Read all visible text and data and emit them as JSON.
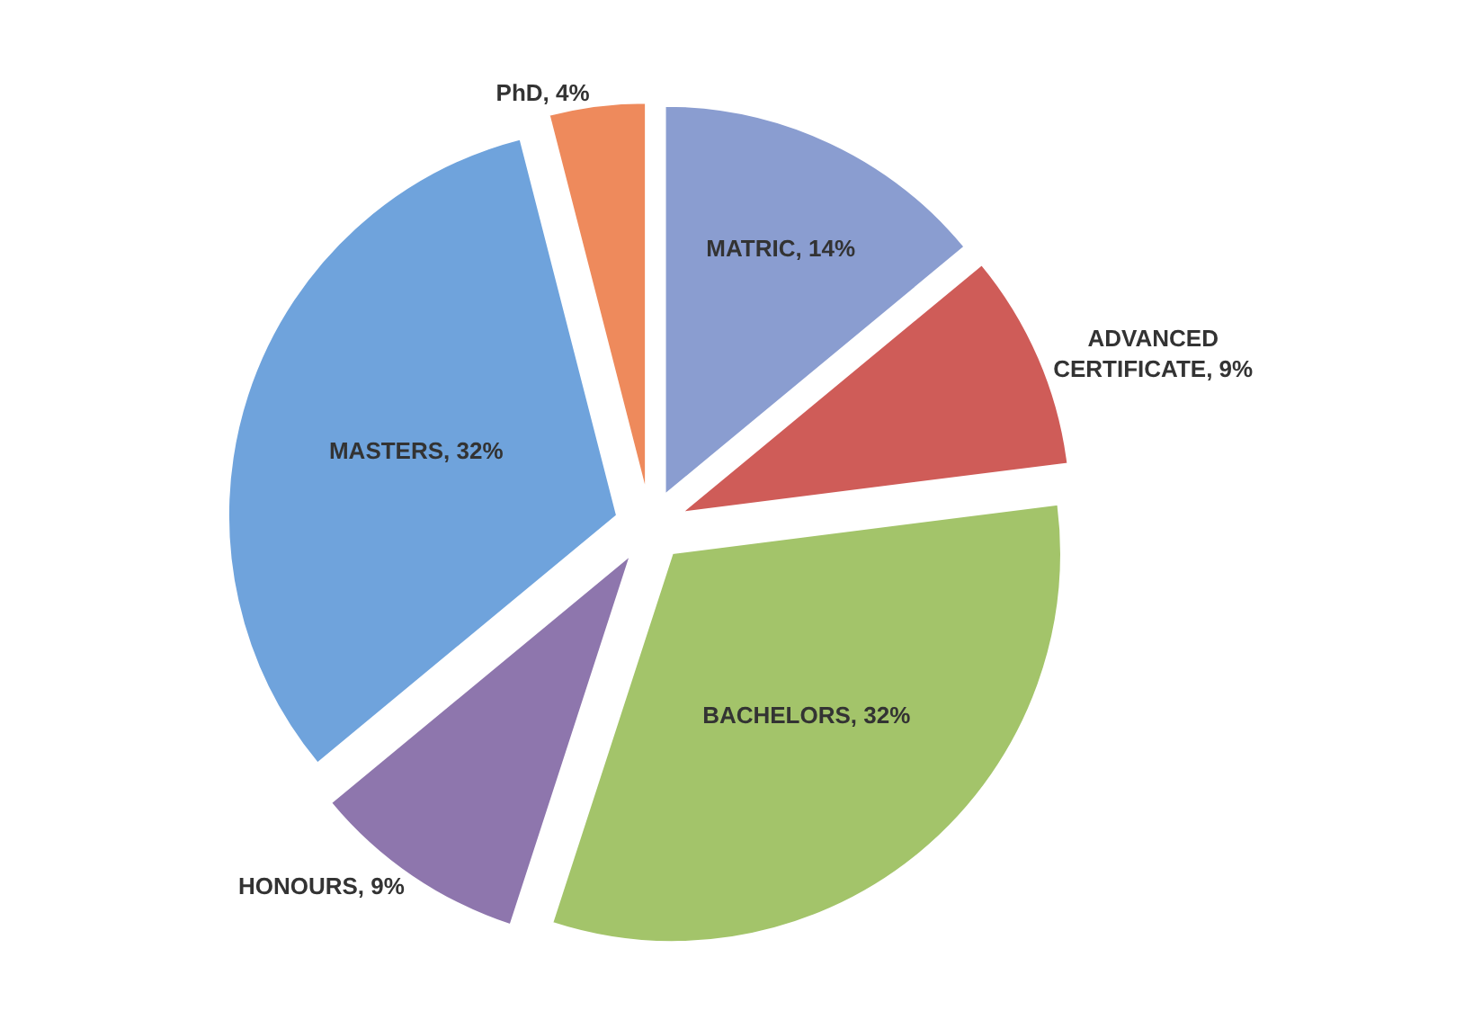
{
  "chart_data": {
    "type": "pie",
    "categories": [
      "MATRIC",
      "ADVANCED CERTIFICATE",
      "BACHELORS",
      "HONOURS",
      "MASTERS",
      "PhD"
    ],
    "values": [
      14,
      9,
      32,
      9,
      32,
      4
    ],
    "colors": [
      "#8a9dd0",
      "#cf5c58",
      "#a3c46a",
      "#8e76ad",
      "#6fa3dc",
      "#ee8a5c"
    ],
    "value_labels": [
      "14%",
      "9%",
      "32%",
      "9%",
      "32%",
      "4%"
    ],
    "legend": false
  }
}
